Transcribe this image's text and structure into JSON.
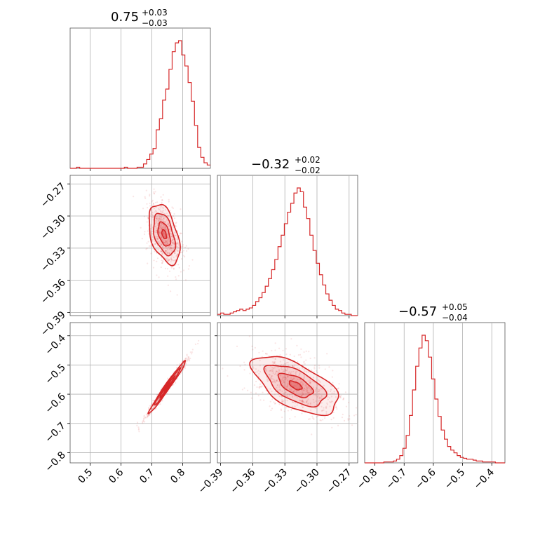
{
  "chart_data": {
    "type": "corner",
    "color": "#d62728",
    "grid": true,
    "parameters": [
      {
        "title": {
          "median": "0.75",
          "plus": "+0.03",
          "minus": "−0.03"
        },
        "range": [
          0.435,
          0.89
        ],
        "ticks": [
          0.5,
          0.6,
          0.7,
          0.8
        ],
        "tick_labels": [
          "0.5",
          "0.6",
          "0.7",
          "0.8"
        ],
        "histogram_bins": [
          0.435,
          0.89,
          44
        ],
        "histogram_counts": [
          0,
          0,
          1,
          0,
          0,
          0,
          0,
          0,
          0,
          0,
          0,
          0,
          0,
          0,
          0,
          0,
          0,
          1,
          0,
          0,
          0,
          1,
          1,
          4,
          8,
          13,
          18,
          35,
          45,
          62,
          72,
          90,
          106,
          114,
          116,
          103,
          93,
          78,
          61,
          39,
          19,
          10,
          5,
          3
        ]
      },
      {
        "title": {
          "median": "−0.32",
          "plus": "+0.02",
          "minus": "−0.02"
        },
        "range": [
          -0.393,
          -0.262
        ],
        "ticks": [
          -0.39,
          -0.36,
          -0.33,
          -0.3,
          -0.27
        ],
        "tick_labels": [
          "−0.39",
          "−0.36",
          "−0.33",
          "−0.30",
          "−0.27"
        ],
        "histogram_bins": [
          -0.393,
          -0.262,
          44
        ],
        "histogram_counts": [
          1,
          2,
          1,
          1,
          2,
          3,
          4,
          5,
          4,
          5,
          6,
          8,
          11,
          14,
          18,
          23,
          29,
          36,
          44,
          54,
          63,
          72,
          81,
          88,
          96,
          100,
          97,
          85,
          76,
          63,
          51,
          41,
          32,
          24,
          17,
          12,
          8,
          5,
          4,
          2,
          1,
          1,
          0,
          0
        ]
      },
      {
        "title": {
          "median": "−0.57",
          "plus": "+0.05",
          "minus": "−0.04"
        },
        "range": [
          -0.835,
          -0.355
        ],
        "ticks": [
          -0.8,
          -0.7,
          -0.6,
          -0.5,
          -0.4
        ],
        "tick_labels": [
          "−0.8",
          "−0.7",
          "−0.6",
          "−0.5",
          "−0.4"
        ],
        "histogram_bins": [
          -0.835,
          -0.355,
          44
        ],
        "histogram_counts": [
          0,
          0,
          0,
          0,
          0,
          0,
          1,
          1,
          1,
          2,
          4,
          8,
          16,
          30,
          52,
          80,
          106,
          126,
          140,
          134,
          116,
          92,
          70,
          51,
          36,
          26,
          18,
          14,
          11,
          8,
          6,
          5,
          4,
          4,
          3,
          2,
          2,
          1,
          1,
          1,
          1,
          0,
          0,
          0
        ]
      }
    ],
    "pairs": [
      {
        "x": 0,
        "y": 1,
        "center": [
          0.74,
          -0.317
        ],
        "sigma": [
          0.025,
          0.014
        ],
        "rho": -0.45
      },
      {
        "x": 0,
        "y": 2,
        "center": [
          0.75,
          -0.575
        ],
        "sigma": [
          0.03,
          0.045
        ],
        "rho": 0.985
      },
      {
        "x": 1,
        "y": 2,
        "center": [
          -0.32,
          -0.57
        ],
        "sigma": [
          0.02,
          0.05
        ],
        "rho": -0.6
      }
    ]
  }
}
